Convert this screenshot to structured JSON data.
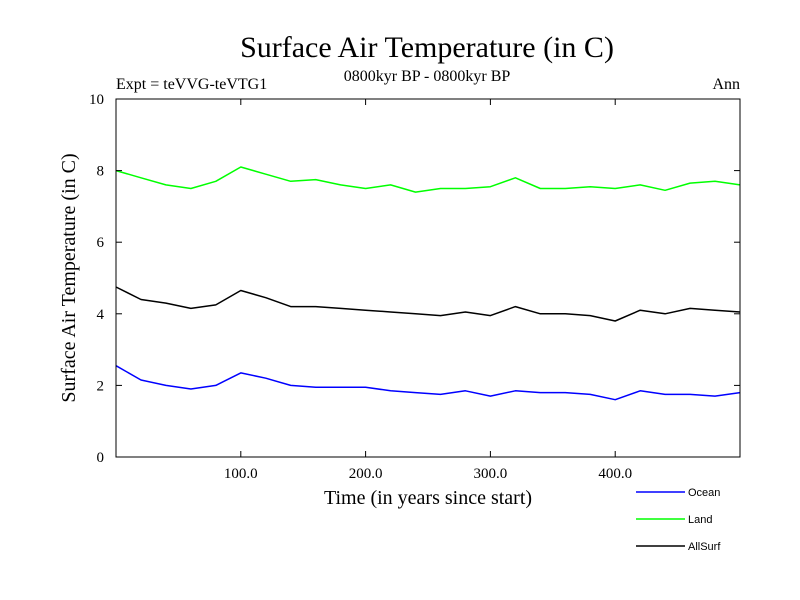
{
  "chart_data": {
    "type": "line",
    "title": "Surface Air Temperature (in C)",
    "subtitle": "0800kyr BP - 0800kyr BP",
    "expt_label": "Expt = teVVG-teVTG1",
    "period_label": "Ann",
    "xlabel": "Time (in years since start)",
    "ylabel": "Surface Air Temperature (in C)",
    "xlim": [
      0,
      500
    ],
    "ylim": [
      0,
      10
    ],
    "x_ticks": [
      100,
      200,
      300,
      400
    ],
    "x_tick_labels": [
      "100.0",
      "200.0",
      "300.0",
      "400.0"
    ],
    "y_ticks": [
      0,
      2,
      4,
      6,
      8,
      10
    ],
    "y_tick_labels": [
      "0",
      "2",
      "4",
      "6",
      "8",
      "10"
    ],
    "series": [
      {
        "name": "Ocean",
        "color": "#0000ff",
        "x": [
          0,
          20,
          40,
          60,
          80,
          100,
          120,
          140,
          160,
          180,
          200,
          220,
          240,
          260,
          280,
          300,
          320,
          340,
          360,
          380,
          400,
          420,
          440,
          460,
          480,
          500
        ],
        "values": [
          2.55,
          2.15,
          2.0,
          1.9,
          2.0,
          2.35,
          2.2,
          2.0,
          1.95,
          1.95,
          1.95,
          1.85,
          1.8,
          1.75,
          1.85,
          1.7,
          1.85,
          1.8,
          1.8,
          1.75,
          1.6,
          1.85,
          1.75,
          1.75,
          1.7,
          1.8
        ]
      },
      {
        "name": "Land",
        "color": "#00ff00",
        "x": [
          0,
          20,
          40,
          60,
          80,
          100,
          120,
          140,
          160,
          180,
          200,
          220,
          240,
          260,
          280,
          300,
          320,
          340,
          360,
          380,
          400,
          420,
          440,
          460,
          480,
          500
        ],
        "values": [
          8.0,
          7.8,
          7.6,
          7.5,
          7.7,
          8.1,
          7.9,
          7.7,
          7.75,
          7.6,
          7.5,
          7.6,
          7.4,
          7.5,
          7.5,
          7.55,
          7.8,
          7.5,
          7.5,
          7.55,
          7.5,
          7.6,
          7.45,
          7.65,
          7.7,
          7.6
        ]
      },
      {
        "name": "AllSurf",
        "color": "#000000",
        "x": [
          0,
          20,
          40,
          60,
          80,
          100,
          120,
          140,
          160,
          180,
          200,
          220,
          240,
          260,
          280,
          300,
          320,
          340,
          360,
          380,
          400,
          420,
          440,
          460,
          480,
          500
        ],
        "values": [
          4.75,
          4.4,
          4.3,
          4.15,
          4.25,
          4.65,
          4.45,
          4.2,
          4.2,
          4.15,
          4.1,
          4.05,
          4.0,
          3.95,
          4.05,
          3.95,
          4.2,
          4.0,
          4.0,
          3.95,
          3.8,
          4.1,
          4.0,
          4.15,
          4.1,
          4.05
        ]
      }
    ]
  }
}
